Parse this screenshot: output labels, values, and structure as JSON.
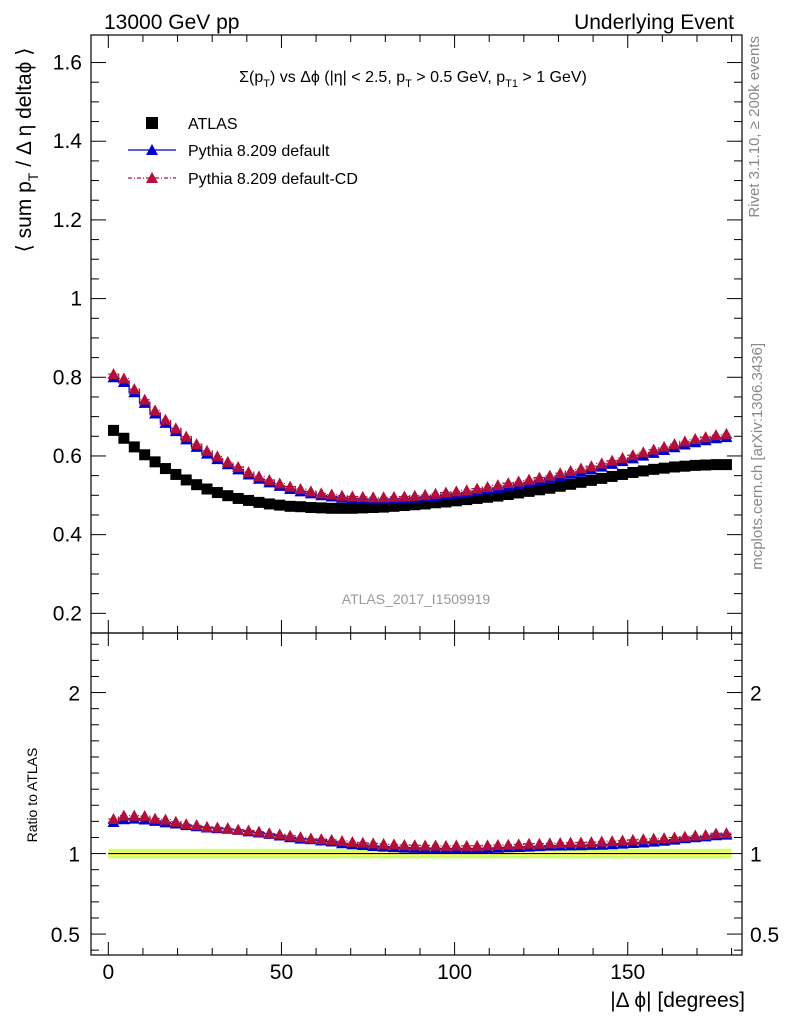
{
  "header": {
    "left": "13000 GeV pp",
    "right": "Underlying Event"
  },
  "side_labels": {
    "rivet": "Rivet 3.1.10, ≥ 200k events",
    "mcplots": "mcplots.cern.ch [arXiv:1306.3436]"
  },
  "colors": {
    "atlas": "#000000",
    "default": "#0000cc",
    "default_cd": "#b0103a",
    "band_outer": "#ccff66",
    "band_inner": "#ffff66",
    "watermark": "#999999"
  },
  "chart_data": [
    {
      "type": "scatter",
      "title": "Σ(p_T) vs Δϕ (|η| < 2.5, p_T > 0.5 GeV, p_T1 > 1 GeV)",
      "title_parts": {
        "a": "Σ(p",
        "b": "T",
        "c": ") vs Δϕ (|η| < 2.5, p",
        "d": "T",
        "e": " > 0.5 GeV, p",
        "f": "T1",
        "g": " > 1 GeV)"
      },
      "ylabel": "⟨ sum p_T / Δ η deltaϕ ⟩",
      "ylabel_parts": {
        "a": "⟨ sum p",
        "b": "T",
        "c": " / Δ η deltaϕ ⟩"
      },
      "xlim": [
        -5,
        183
      ],
      "ylim": [
        0.15,
        1.67
      ],
      "yticks": [
        0.2,
        0.4,
        0.6,
        0.8,
        1,
        1.2,
        1.4,
        1.6
      ],
      "ytick_labels": [
        "0.2",
        "0.4",
        "0.6",
        "0.8",
        "1",
        "1.2",
        "1.4",
        "1.6"
      ],
      "watermark": "ATLAS_2017_I1509919",
      "legend_position": "top-left",
      "x": [
        1.5,
        4.5,
        7.5,
        10.5,
        13.5,
        16.5,
        19.5,
        22.5,
        25.5,
        28.5,
        31.5,
        34.5,
        37.5,
        40.5,
        43.5,
        46.5,
        49.5,
        52.5,
        55.5,
        58.5,
        61.5,
        64.5,
        67.5,
        70.5,
        73.5,
        76.5,
        79.5,
        82.5,
        85.5,
        88.5,
        91.5,
        94.5,
        97.5,
        100.5,
        103.5,
        106.5,
        109.5,
        112.5,
        115.5,
        118.5,
        121.5,
        124.5,
        127.5,
        130.5,
        133.5,
        136.5,
        139.5,
        142.5,
        145.5,
        148.5,
        151.5,
        154.5,
        157.5,
        160.5,
        163.5,
        166.5,
        169.5,
        172.5,
        175.5,
        178.5
      ],
      "series": [
        {
          "name": "ATLAS",
          "marker": "square",
          "values": [
            0.665,
            0.645,
            0.623,
            0.603,
            0.585,
            0.568,
            0.553,
            0.539,
            0.527,
            0.516,
            0.507,
            0.499,
            0.492,
            0.487,
            0.482,
            0.478,
            0.475,
            0.472,
            0.471,
            0.469,
            0.468,
            0.467,
            0.467,
            0.467,
            0.468,
            0.469,
            0.47,
            0.472,
            0.474,
            0.476,
            0.478,
            0.481,
            0.483,
            0.486,
            0.489,
            0.492,
            0.495,
            0.498,
            0.502,
            0.506,
            0.51,
            0.514,
            0.518,
            0.523,
            0.528,
            0.533,
            0.538,
            0.543,
            0.548,
            0.553,
            0.558,
            0.562,
            0.566,
            0.569,
            0.572,
            0.574,
            0.576,
            0.577,
            0.578,
            0.578
          ]
        },
        {
          "name": "Pythia 8.209 default",
          "marker": "triangle",
          "values": [
            0.8,
            0.788,
            0.762,
            0.735,
            0.708,
            0.684,
            0.663,
            0.642,
            0.623,
            0.606,
            0.592,
            0.579,
            0.566,
            0.553,
            0.542,
            0.533,
            0.524,
            0.516,
            0.51,
            0.505,
            0.5,
            0.497,
            0.494,
            0.492,
            0.491,
            0.49,
            0.49,
            0.491,
            0.492,
            0.494,
            0.496,
            0.498,
            0.501,
            0.504,
            0.507,
            0.511,
            0.515,
            0.519,
            0.524,
            0.528,
            0.533,
            0.538,
            0.543,
            0.549,
            0.555,
            0.56,
            0.566,
            0.573,
            0.58,
            0.587,
            0.594,
            0.601,
            0.608,
            0.615,
            0.622,
            0.629,
            0.635,
            0.64,
            0.645,
            0.648
          ]
        },
        {
          "name": "Pythia 8.209 default-CD",
          "marker": "triangle",
          "values": [
            0.808,
            0.797,
            0.77,
            0.743,
            0.716,
            0.692,
            0.67,
            0.649,
            0.63,
            0.613,
            0.599,
            0.585,
            0.572,
            0.559,
            0.548,
            0.539,
            0.53,
            0.522,
            0.516,
            0.51,
            0.505,
            0.502,
            0.499,
            0.497,
            0.496,
            0.495,
            0.495,
            0.496,
            0.497,
            0.499,
            0.501,
            0.504,
            0.507,
            0.51,
            0.513,
            0.517,
            0.521,
            0.526,
            0.531,
            0.535,
            0.54,
            0.545,
            0.55,
            0.556,
            0.562,
            0.568,
            0.574,
            0.581,
            0.588,
            0.595,
            0.602,
            0.609,
            0.616,
            0.623,
            0.63,
            0.637,
            0.643,
            0.648,
            0.653,
            0.656
          ]
        }
      ]
    },
    {
      "type": "scatter",
      "ylabel": "Ratio to ATLAS",
      "xlabel": "|Δ ϕ| [degrees]",
      "xlim": [
        -5,
        183
      ],
      "ylim": [
        0.37,
        2.37
      ],
      "xticks": [
        0,
        50,
        100,
        150
      ],
      "xtick_labels": [
        "0",
        "50",
        "100",
        "150"
      ],
      "yticks": [
        0.5,
        1,
        2
      ],
      "ytick_labels": [
        "0.5",
        "1",
        "2"
      ],
      "band": {
        "center": 1.0,
        "outer_halfwidth": 0.03,
        "inner_halfwidth": 0.012
      },
      "series": [
        {
          "name": "Pythia 8.209 default",
          "values": [
            1.196,
            1.213,
            1.217,
            1.212,
            1.203,
            1.194,
            1.187,
            1.177,
            1.17,
            1.162,
            1.157,
            1.154,
            1.147,
            1.138,
            1.131,
            1.122,
            1.112,
            1.101,
            1.093,
            1.089,
            1.081,
            1.075,
            1.064,
            1.058,
            1.053,
            1.047,
            1.043,
            1.04,
            1.037,
            1.035,
            1.034,
            1.032,
            1.032,
            1.032,
            1.032,
            1.033,
            1.034,
            1.036,
            1.039,
            1.041,
            1.043,
            1.046,
            1.049,
            1.05,
            1.051,
            1.052,
            1.054,
            1.055,
            1.058,
            1.062,
            1.066,
            1.069,
            1.074,
            1.08,
            1.087,
            1.095,
            1.101,
            1.107,
            1.114,
            1.118
          ]
        },
        {
          "name": "Pythia 8.209 default-CD",
          "values": [
            1.215,
            1.236,
            1.236,
            1.233,
            1.217,
            1.211,
            1.198,
            1.183,
            1.177,
            1.166,
            1.162,
            1.158,
            1.148,
            1.143,
            1.136,
            1.126,
            1.119,
            1.111,
            1.102,
            1.094,
            1.09,
            1.085,
            1.078,
            1.072,
            1.067,
            1.063,
            1.06,
            1.057,
            1.053,
            1.052,
            1.05,
            1.05,
            1.048,
            1.05,
            1.048,
            1.048,
            1.051,
            1.053,
            1.055,
            1.057,
            1.061,
            1.061,
            1.063,
            1.066,
            1.068,
            1.069,
            1.071,
            1.075,
            1.077,
            1.081,
            1.085,
            1.089,
            1.093,
            1.096,
            1.1,
            1.105,
            1.112,
            1.115,
            1.125,
            1.127
          ]
        }
      ]
    }
  ]
}
